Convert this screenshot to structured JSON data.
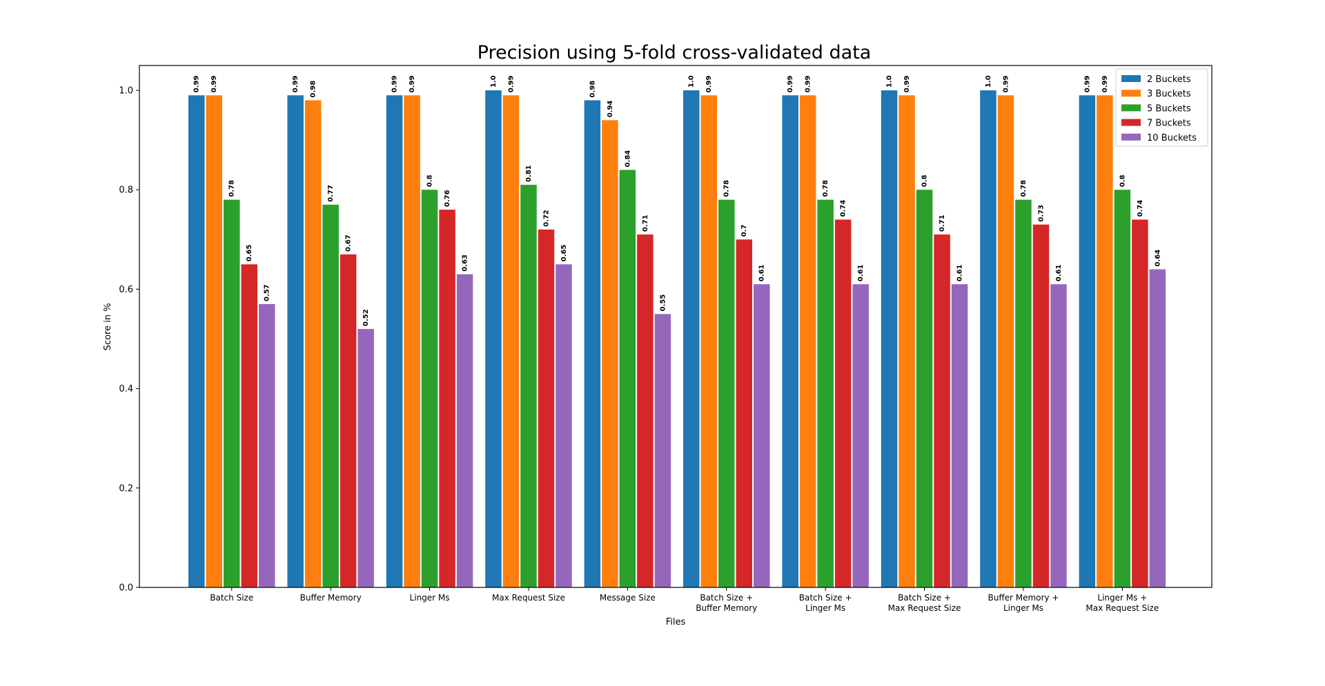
{
  "chart_data": {
    "type": "bar",
    "title": "Precision using 5-fold cross-validated data",
    "xlabel": "Files",
    "ylabel": "Score in %",
    "ylim": [
      0,
      1.05
    ],
    "yticks": [
      "0.0",
      "0.2",
      "0.4",
      "0.6",
      "0.8",
      "1.0"
    ],
    "grid": false,
    "legend_position": "top-right",
    "categories": [
      [
        "Batch Size"
      ],
      [
        "Buffer Memory"
      ],
      [
        "Linger Ms"
      ],
      [
        "Max Request Size"
      ],
      [
        "Message Size"
      ],
      [
        "Batch Size +",
        "Buffer Memory"
      ],
      [
        "Batch Size +",
        "Linger Ms"
      ],
      [
        "Batch Size +",
        "Max Request Size"
      ],
      [
        "Buffer Memory +",
        "Linger Ms"
      ],
      [
        "Linger Ms +",
        "Max Request Size"
      ]
    ],
    "series": [
      {
        "name": "2 Buckets",
        "color": "#1f77b4",
        "values": [
          0.99,
          0.99,
          0.99,
          1.0,
          0.98,
          1.0,
          0.99,
          1.0,
          1.0,
          0.99
        ],
        "labels": [
          "0.99",
          "0.99",
          "0.99",
          "1.0",
          "0.98",
          "1.0",
          "0.99",
          "1.0",
          "1.0",
          "0.99"
        ]
      },
      {
        "name": "3 Buckets",
        "color": "#ff7f0e",
        "values": [
          0.99,
          0.98,
          0.99,
          0.99,
          0.94,
          0.99,
          0.99,
          0.99,
          0.99,
          0.99
        ],
        "labels": [
          "0.99",
          "0.98",
          "0.99",
          "0.99",
          "0.94",
          "0.99",
          "0.99",
          "0.99",
          "0.99",
          "0.99"
        ]
      },
      {
        "name": "5 Buckets",
        "color": "#2ca02c",
        "values": [
          0.78,
          0.77,
          0.8,
          0.81,
          0.84,
          0.78,
          0.78,
          0.8,
          0.78,
          0.8
        ],
        "labels": [
          "0.78",
          "0.77",
          "0.8",
          "0.81",
          "0.84",
          "0.78",
          "0.78",
          "0.8",
          "0.78",
          "0.8"
        ]
      },
      {
        "name": "7 Buckets",
        "color": "#d62728",
        "values": [
          0.65,
          0.67,
          0.76,
          0.72,
          0.71,
          0.7,
          0.74,
          0.71,
          0.73,
          0.74
        ],
        "labels": [
          "0.65",
          "0.67",
          "0.76",
          "0.72",
          "0.71",
          "0.7",
          "0.74",
          "0.71",
          "0.73",
          "0.74"
        ]
      },
      {
        "name": "10 Buckets",
        "color": "#9467bd",
        "values": [
          0.57,
          0.52,
          0.63,
          0.65,
          0.55,
          0.61,
          0.61,
          0.61,
          0.61,
          0.64
        ],
        "labels": [
          "0.57",
          "0.52",
          "0.63",
          "0.65",
          "0.55",
          "0.61",
          "0.61",
          "0.61",
          "0.61",
          "0.64"
        ]
      }
    ]
  }
}
